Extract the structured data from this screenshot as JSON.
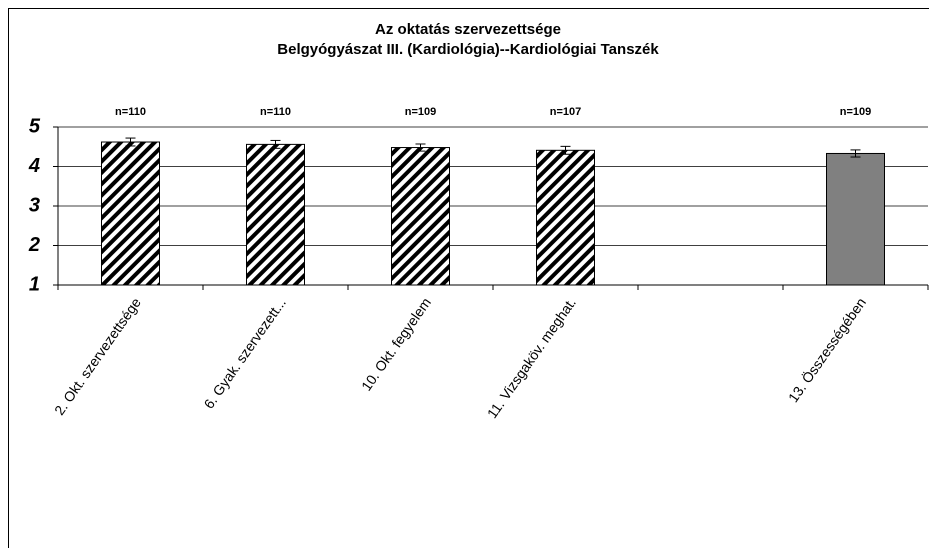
{
  "chart_data": {
    "type": "bar",
    "title": "Az oktatás szervezettsége",
    "subtitle": "Belgyógyászat III. (Kardiológia)--Kardiológiai Tanszék",
    "categories": [
      "2. Okt. szervezettsége",
      "6. Gyak. szervezett...",
      "10. Okt. fegyelem",
      "11. Vizsgaköv. meghat.",
      null,
      "13. Összességében"
    ],
    "values": [
      4.62,
      4.56,
      4.48,
      4.41,
      null,
      4.33
    ],
    "errors": [
      0.1,
      0.1,
      0.09,
      0.1,
      null,
      0.09
    ],
    "annotations": [
      "n=110",
      "n=110",
      "n=109",
      "n=107",
      null,
      "n=109"
    ],
    "colors": [
      "#000000",
      "#000000",
      "#000000",
      "#000000",
      null,
      "#808080"
    ],
    "hatched": [
      true,
      true,
      true,
      true,
      null,
      false
    ],
    "ylim": [
      1,
      5
    ],
    "yticks": [
      1,
      2,
      3,
      4,
      5
    ],
    "grid": true
  }
}
